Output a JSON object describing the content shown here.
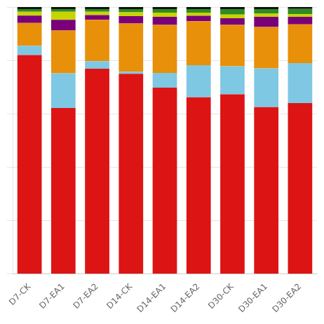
{
  "chart_data": {
    "type": "bar",
    "stacked": true,
    "grid": true,
    "tick_labels": "x",
    "categories": [
      "D7-CK",
      "D7-EA1",
      "D7-EA2",
      "D14-CK",
      "D14-EA1",
      "D14-EA2",
      "D30-CK",
      "D30-EA1",
      "D30-EA2"
    ],
    "series": [
      {
        "color": "#dc1414",
        "values": [
          0.82,
          0.622,
          0.769,
          0.75,
          0.698,
          0.662,
          0.673,
          0.625,
          0.64
        ]
      },
      {
        "color": "#7ec8e3",
        "values": [
          0.035,
          0.13,
          0.028,
          0.008,
          0.055,
          0.12,
          0.105,
          0.145,
          0.15
        ]
      },
      {
        "color": "#e8900a",
        "values": [
          0.085,
          0.16,
          0.155,
          0.18,
          0.18,
          0.165,
          0.155,
          0.155,
          0.145
        ]
      },
      {
        "color": "#7a007a",
        "values": [
          0.028,
          0.04,
          0.018,
          0.028,
          0.03,
          0.02,
          0.025,
          0.038,
          0.028
        ]
      },
      {
        "color": "#c8d400",
        "values": [
          0.014,
          0.03,
          0.012,
          0.014,
          0.016,
          0.012,
          0.014,
          0.012,
          0.01
        ]
      },
      {
        "color": "#2e8b22",
        "values": [
          0.01,
          0.01,
          0.01,
          0.012,
          0.013,
          0.013,
          0.02,
          0.017,
          0.02
        ]
      },
      {
        "color": "#111111",
        "values": [
          0.008,
          0.008,
          0.008,
          0.008,
          0.008,
          0.008,
          0.008,
          0.008,
          0.007
        ]
      }
    ],
    "ylim": [
      0,
      1.0
    ],
    "yticks": [
      0.0,
      0.2,
      0.4,
      0.6,
      0.8,
      1.0
    ]
  }
}
